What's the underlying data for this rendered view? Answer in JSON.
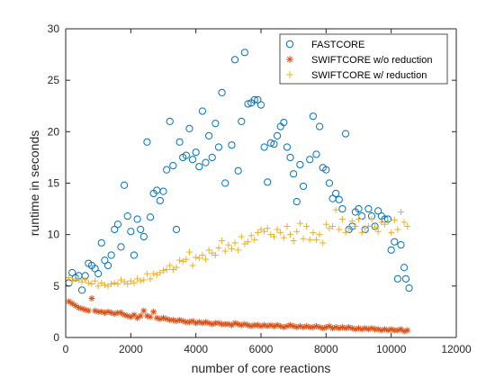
{
  "chart_data": {
    "type": "scatter",
    "title": "",
    "xlabel": "number of core reactions",
    "ylabel": "runtime in seconds",
    "xlim": [
      0,
      12000
    ],
    "ylim": [
      0,
      30
    ],
    "xticks": [
      0,
      2000,
      4000,
      6000,
      8000,
      10000,
      12000
    ],
    "yticks": [
      0,
      5,
      10,
      15,
      20,
      25,
      30
    ],
    "xtick_labels": [
      "0",
      "2000",
      "4000",
      "6000",
      "8000",
      "10000",
      "12000"
    ],
    "ytick_labels": [
      "0",
      "5",
      "10",
      "15",
      "20",
      "25",
      "30"
    ],
    "grid": false,
    "legend_position": "top-right",
    "series": [
      {
        "name": "FASTCORE",
        "marker": "circle",
        "color": "#0072BD",
        "points": [
          [
            100,
            5.3
          ],
          [
            200,
            6.3
          ],
          [
            300,
            5.8
          ],
          [
            400,
            6.0
          ],
          [
            500,
            4.6
          ],
          [
            600,
            6.0
          ],
          [
            700,
            7.2
          ],
          [
            800,
            7.0
          ],
          [
            900,
            6.7
          ],
          [
            1000,
            6.2
          ],
          [
            1100,
            9.2
          ],
          [
            1200,
            7.5
          ],
          [
            1300,
            7.0
          ],
          [
            1400,
            8.0
          ],
          [
            1500,
            10.5
          ],
          [
            1600,
            11.0
          ],
          [
            1700,
            8.8
          ],
          [
            1800,
            14.8
          ],
          [
            1900,
            11.8
          ],
          [
            2000,
            10.3
          ],
          [
            2100,
            8.0
          ],
          [
            2200,
            11.5
          ],
          [
            2300,
            10.5
          ],
          [
            2400,
            9.8
          ],
          [
            2500,
            19.0
          ],
          [
            2600,
            11.7
          ],
          [
            2700,
            14.0
          ],
          [
            2800,
            14.3
          ],
          [
            2900,
            13.3
          ],
          [
            3000,
            14.2
          ],
          [
            3100,
            16.3
          ],
          [
            3200,
            21.0
          ],
          [
            3300,
            16.7
          ],
          [
            3400,
            10.5
          ],
          [
            3500,
            19.0
          ],
          [
            3600,
            17.5
          ],
          [
            3700,
            17.7
          ],
          [
            3800,
            20.3
          ],
          [
            3900,
            17.3
          ],
          [
            4000,
            18.0
          ],
          [
            4100,
            16.6
          ],
          [
            4200,
            22.0
          ],
          [
            4300,
            17.0
          ],
          [
            4400,
            19.6
          ],
          [
            4500,
            17.5
          ],
          [
            4600,
            20.8
          ],
          [
            4700,
            18.5
          ],
          [
            4800,
            23.8
          ],
          [
            4900,
            15.0
          ],
          [
            5100,
            18.7
          ],
          [
            5200,
            27.0
          ],
          [
            5300,
            16.2
          ],
          [
            5400,
            21.0
          ],
          [
            5500,
            27.7
          ],
          [
            5600,
            22.7
          ],
          [
            5700,
            22.8
          ],
          [
            5800,
            23.1
          ],
          [
            5900,
            23.1
          ],
          [
            6000,
            22.6
          ],
          [
            6100,
            18.5
          ],
          [
            6200,
            15.1
          ],
          [
            6300,
            18.9
          ],
          [
            6400,
            18.8
          ],
          [
            6500,
            19.6
          ],
          [
            6600,
            20.5
          ],
          [
            6700,
            20.9
          ],
          [
            6800,
            18.5
          ],
          [
            6900,
            17.5
          ],
          [
            7000,
            15.9
          ],
          [
            7100,
            13.2
          ],
          [
            7200,
            16.8
          ],
          [
            7300,
            14.7
          ],
          [
            7500,
            17.3
          ],
          [
            7600,
            21.5
          ],
          [
            7700,
            17.8
          ],
          [
            7800,
            20.5
          ],
          [
            7900,
            16.5
          ],
          [
            8000,
            16.3
          ],
          [
            8100,
            15.0
          ],
          [
            8200,
            13.5
          ],
          [
            8300,
            14.0
          ],
          [
            8400,
            13.4
          ],
          [
            8500,
            12.5
          ],
          [
            8600,
            19.8
          ],
          [
            8700,
            10.5
          ],
          [
            8800,
            10.8
          ],
          [
            8900,
            12.2
          ],
          [
            9000,
            12.5
          ],
          [
            9100,
            11.8
          ],
          [
            9200,
            10.5
          ],
          [
            9300,
            12.5
          ],
          [
            9400,
            11.8
          ],
          [
            9500,
            10.8
          ],
          [
            9600,
            12.3
          ],
          [
            9700,
            11.8
          ],
          [
            9800,
            11.5
          ],
          [
            9900,
            11.5
          ],
          [
            10000,
            8.5
          ],
          [
            10100,
            9.3
          ],
          [
            10200,
            5.7
          ],
          [
            10300,
            9.0
          ],
          [
            10400,
            6.8
          ],
          [
            10450,
            5.7
          ],
          [
            10550,
            4.8
          ]
        ]
      },
      {
        "name": "SWIFTCORE w/o reduction",
        "marker": "asterisk",
        "color": "#D95319",
        "points": [
          [
            100,
            3.5
          ],
          [
            200,
            3.3
          ],
          [
            300,
            3.1
          ],
          [
            400,
            2.9
          ],
          [
            500,
            2.8
          ],
          [
            600,
            2.7
          ],
          [
            700,
            2.6
          ],
          [
            800,
            3.8
          ],
          [
            900,
            2.6
          ],
          [
            1000,
            2.5
          ],
          [
            1100,
            2.5
          ],
          [
            1200,
            2.4
          ],
          [
            1300,
            2.5
          ],
          [
            1400,
            2.4
          ],
          [
            1500,
            2.3
          ],
          [
            1600,
            2.4
          ],
          [
            1700,
            2.4
          ],
          [
            1800,
            2.2
          ],
          [
            1900,
            2.1
          ],
          [
            2000,
            2.0
          ],
          [
            2100,
            2.2
          ],
          [
            2200,
            1.9
          ],
          [
            2300,
            2.1
          ],
          [
            2400,
            2.6
          ],
          [
            2500,
            2.1
          ],
          [
            2600,
            2.0
          ],
          [
            2700,
            2.5
          ],
          [
            2800,
            1.9
          ],
          [
            2900,
            1.8
          ],
          [
            3000,
            1.9
          ],
          [
            3100,
            1.8
          ],
          [
            3200,
            1.7
          ],
          [
            3300,
            1.7
          ],
          [
            3400,
            1.6
          ],
          [
            3500,
            1.7
          ],
          [
            3600,
            1.6
          ],
          [
            3700,
            1.5
          ],
          [
            3800,
            1.5
          ],
          [
            3900,
            1.6
          ],
          [
            4000,
            1.4
          ],
          [
            4100,
            1.5
          ],
          [
            4200,
            1.4
          ],
          [
            4300,
            1.5
          ],
          [
            4400,
            1.4
          ],
          [
            4500,
            1.3
          ],
          [
            4600,
            1.4
          ],
          [
            4700,
            1.4
          ],
          [
            4800,
            1.3
          ],
          [
            4900,
            1.3
          ],
          [
            5000,
            1.3
          ],
          [
            5100,
            1.2
          ],
          [
            5200,
            1.4
          ],
          [
            5300,
            1.3
          ],
          [
            5400,
            1.2
          ],
          [
            5500,
            1.3
          ],
          [
            5600,
            1.2
          ],
          [
            5700,
            1.1
          ],
          [
            5800,
            1.2
          ],
          [
            5900,
            1.2
          ],
          [
            6000,
            1.1
          ],
          [
            6100,
            1.2
          ],
          [
            6200,
            1.1
          ],
          [
            6300,
            1.2
          ],
          [
            6400,
            1.1
          ],
          [
            6500,
            1.2
          ],
          [
            6600,
            1.1
          ],
          [
            6700,
            1.0
          ],
          [
            6800,
            1.1
          ],
          [
            6900,
            1.2
          ],
          [
            7000,
            1.1
          ],
          [
            7100,
            1.0
          ],
          [
            7200,
            1.1
          ],
          [
            7300,
            1.0
          ],
          [
            7400,
            1.1
          ],
          [
            7500,
            1.0
          ],
          [
            7600,
            1.0
          ],
          [
            7700,
            1.1
          ],
          [
            7800,
            1.0
          ],
          [
            7900,
            0.9
          ],
          [
            8000,
            1.0
          ],
          [
            8100,
            1.1
          ],
          [
            8200,
            0.9
          ],
          [
            8300,
            1.0
          ],
          [
            8400,
            0.9
          ],
          [
            8500,
            1.0
          ],
          [
            8600,
            0.9
          ],
          [
            8700,
            1.0
          ],
          [
            8800,
            0.9
          ],
          [
            8900,
            0.8
          ],
          [
            9000,
            0.9
          ],
          [
            9100,
            0.8
          ],
          [
            9200,
            0.9
          ],
          [
            9300,
            0.8
          ],
          [
            9400,
            0.9
          ],
          [
            9500,
            0.8
          ],
          [
            9600,
            0.8
          ],
          [
            9700,
            0.7
          ],
          [
            9800,
            0.8
          ],
          [
            9900,
            0.7
          ],
          [
            10000,
            0.8
          ],
          [
            10100,
            0.7
          ],
          [
            10200,
            0.7
          ],
          [
            10300,
            0.8
          ],
          [
            10400,
            0.6
          ],
          [
            10500,
            0.7
          ]
        ]
      },
      {
        "name": "SWIFTCORE w/ reduction",
        "marker": "plus",
        "color": "#EDB120",
        "points": [
          [
            100,
            5.8
          ],
          [
            200,
            5.5
          ],
          [
            300,
            5.7
          ],
          [
            400,
            5.6
          ],
          [
            500,
            5.4
          ],
          [
            600,
            5.6
          ],
          [
            700,
            5.3
          ],
          [
            800,
            5.2
          ],
          [
            900,
            5.5
          ],
          [
            1000,
            5.0
          ],
          [
            1100,
            5.3
          ],
          [
            1200,
            5.1
          ],
          [
            1300,
            5.0
          ],
          [
            1400,
            5.2
          ],
          [
            1500,
            5.3
          ],
          [
            1600,
            5.2
          ],
          [
            1700,
            5.6
          ],
          [
            1800,
            5.4
          ],
          [
            1900,
            5.2
          ],
          [
            2000,
            5.5
          ],
          [
            2100,
            5.3
          ],
          [
            2200,
            5.7
          ],
          [
            2300,
            5.5
          ],
          [
            2400,
            5.6
          ],
          [
            2500,
            6.2
          ],
          [
            2600,
            5.7
          ],
          [
            2700,
            6.2
          ],
          [
            2800,
            6.1
          ],
          [
            2900,
            6.3
          ],
          [
            3000,
            6.5
          ],
          [
            3100,
            6.6
          ],
          [
            3200,
            7.0
          ],
          [
            3300,
            6.6
          ],
          [
            3400,
            6.8
          ],
          [
            3500,
            7.5
          ],
          [
            3600,
            7.4
          ],
          [
            3700,
            7.6
          ],
          [
            3800,
            8.3
          ],
          [
            3900,
            7.0
          ],
          [
            4000,
            7.8
          ],
          [
            4100,
            7.7
          ],
          [
            4200,
            8.0
          ],
          [
            4300,
            7.6
          ],
          [
            4400,
            8.5
          ],
          [
            4500,
            8.2
          ],
          [
            4600,
            8.0
          ],
          [
            4700,
            8.7
          ],
          [
            4800,
            9.4
          ],
          [
            4900,
            8.4
          ],
          [
            5000,
            9.0
          ],
          [
            5100,
            8.6
          ],
          [
            5200,
            9.2
          ],
          [
            5300,
            8.5
          ],
          [
            5400,
            9.8
          ],
          [
            5500,
            9.1
          ],
          [
            5600,
            9.3
          ],
          [
            5700,
            9.9
          ],
          [
            5800,
            9.5
          ],
          [
            5900,
            10.2
          ],
          [
            6000,
            10.5
          ],
          [
            6100,
            10.3
          ],
          [
            6200,
            10.6
          ],
          [
            6300,
            10.0
          ],
          [
            6400,
            9.8
          ],
          [
            6500,
            10.5
          ],
          [
            6600,
            10.2
          ],
          [
            6700,
            9.7
          ],
          [
            6800,
            10.8
          ],
          [
            6900,
            10.0
          ],
          [
            7000,
            9.4
          ],
          [
            7100,
            10.3
          ],
          [
            7200,
            11.1
          ],
          [
            7300,
            9.6
          ],
          [
            7400,
            10.8
          ],
          [
            7500,
            9.5
          ],
          [
            7600,
            10.2
          ],
          [
            7700,
            9.5
          ],
          [
            7800,
            10.0
          ],
          [
            7900,
            9.2
          ],
          [
            8000,
            11.0
          ],
          [
            8100,
            10.6
          ],
          [
            8200,
            10.8
          ],
          [
            8300,
            12.4
          ],
          [
            8400,
            10.5
          ],
          [
            8500,
            11.5
          ],
          [
            8600,
            10.2
          ],
          [
            8700,
            10.6
          ],
          [
            8800,
            11.3
          ],
          [
            8900,
            10.8
          ],
          [
            9000,
            11.5
          ],
          [
            9100,
            10.2
          ],
          [
            9200,
            10.6
          ],
          [
            9300,
            10.8
          ],
          [
            9400,
            11.5
          ],
          [
            9500,
            10.7
          ],
          [
            9600,
            10.3
          ],
          [
            9700,
            11.2
          ],
          [
            9800,
            11.0
          ],
          [
            9900,
            11.3
          ],
          [
            10000,
            10.2
          ],
          [
            10100,
            11.4
          ],
          [
            10200,
            10.5
          ],
          [
            10300,
            12.2
          ],
          [
            10400,
            11.2
          ],
          [
            10500,
            10.8
          ]
        ]
      }
    ]
  }
}
